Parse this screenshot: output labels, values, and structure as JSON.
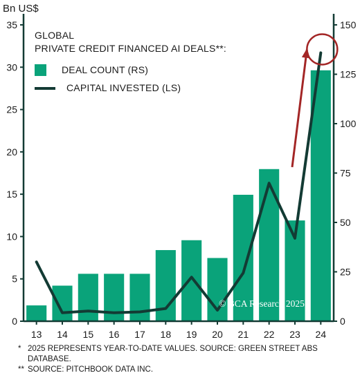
{
  "chart_data": {
    "type": "bar+line",
    "unit_label": "Bn US$",
    "title_lines": [
      "GLOBAL",
      "PRIVATE CREDIT FINANCED AI DEALS**:"
    ],
    "categories": [
      "13",
      "14",
      "15",
      "16",
      "17",
      "18",
      "19",
      "20",
      "21",
      "22",
      "23",
      "24"
    ],
    "series": [
      {
        "name": "DEAL COUNT (RS)",
        "kind": "bar",
        "axis": "right",
        "color": "#0aa37a",
        "values": [
          8,
          18,
          24,
          24,
          24,
          36,
          41,
          32,
          64,
          77,
          51,
          127
        ]
      },
      {
        "name": "CAPITAL INVESTED (LS)",
        "kind": "line",
        "axis": "left",
        "color": "#133b34",
        "values": [
          7.0,
          1.0,
          1.2,
          1.0,
          1.1,
          1.5,
          5.2,
          1.3,
          5.7,
          16.3,
          9.8,
          31.7
        ]
      }
    ],
    "left_axis": {
      "min": 0,
      "max": 35,
      "ticks": [
        0,
        5,
        10,
        15,
        20,
        25,
        30,
        35
      ]
    },
    "right_axis": {
      "min": 0,
      "max": 150,
      "ticks": [
        0,
        25,
        50,
        75,
        100,
        125,
        150
      ]
    },
    "grid": false,
    "legend_position": "top-left",
    "annotation_color": "#a32626",
    "watermark": "© BCA Research 2025"
  },
  "footnotes": [
    {
      "mark": "*",
      "text": "2025 REPRESENTS YEAR-TO-DATE VALUES. SOURCE: GREEN STREET ABS DATABASE."
    },
    {
      "mark": "**",
      "text": "SOURCE: PITCHBOOK DATA INC."
    }
  ]
}
